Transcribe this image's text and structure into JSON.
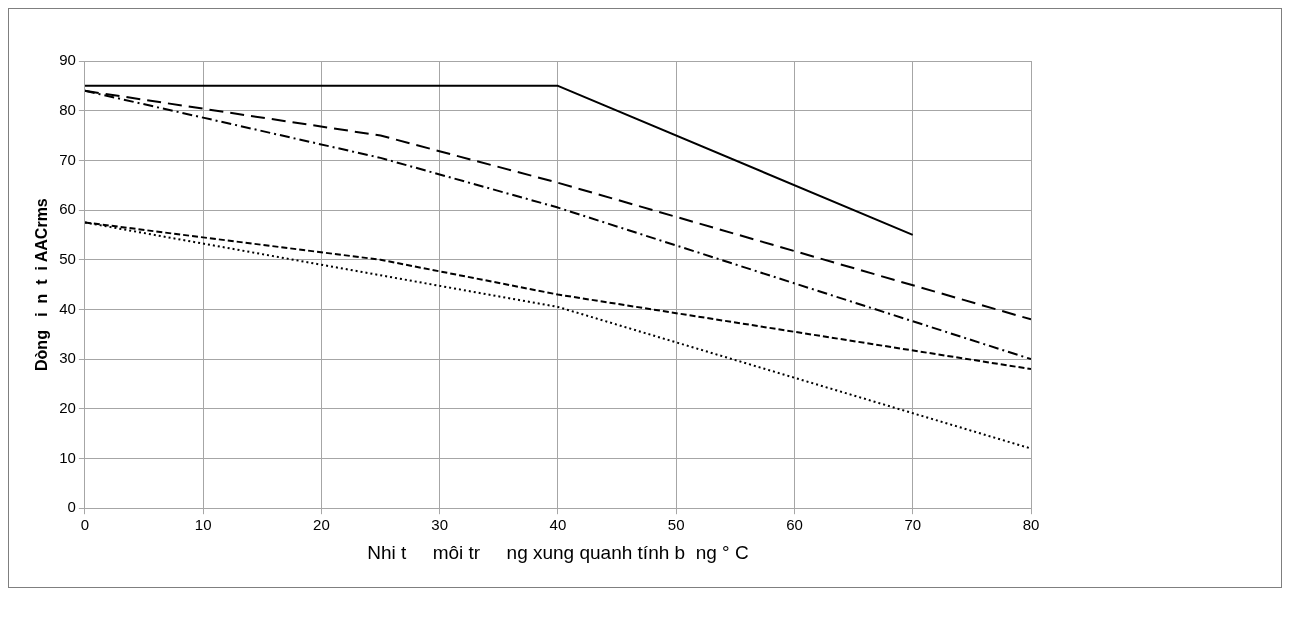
{
  "chart_data": {
    "type": "line",
    "xlabel": "Nhi t     môi tr     ng xung quanh tính b  ng ° C",
    "ylabel": "Dòng   i  n  t  i AACrms",
    "xlim": [
      0,
      80
    ],
    "xticks": [
      0,
      10,
      20,
      30,
      40,
      50,
      60,
      70,
      80
    ],
    "ylim": [
      0,
      90
    ],
    "yticks": [
      0,
      10,
      20,
      30,
      40,
      50,
      60,
      70,
      80,
      90
    ],
    "grid": true,
    "legend": false,
    "marker": "none",
    "series": [
      {
        "color": "#000000",
        "line_style": "solid",
        "x": [
          0,
          40,
          70
        ],
        "values": [
          85,
          85,
          55
        ]
      },
      {
        "color": "#000000",
        "line_style": "dashed",
        "x": [
          0,
          25,
          40,
          80
        ],
        "values": [
          84,
          75,
          65.5,
          38
        ]
      },
      {
        "color": "#000000",
        "line_style": "dashed",
        "x": [
          0,
          25,
          40,
          80
        ],
        "values": [
          84,
          70.5,
          60.5,
          30
        ]
      },
      {
        "color": "#000000",
        "line_style": "dashed",
        "x": [
          0,
          25,
          40,
          80
        ],
        "values": [
          57.5,
          50,
          43,
          28
        ]
      },
      {
        "color": "#000000",
        "line_style": "dotted",
        "x": [
          0,
          40,
          80
        ],
        "values": [
          57.5,
          40.5,
          12
        ]
      }
    ]
  }
}
